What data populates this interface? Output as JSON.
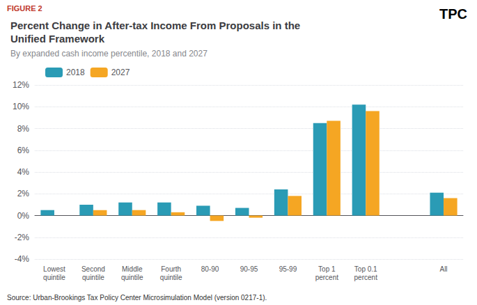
{
  "chart_data": {
    "type": "bar",
    "title": "Percent Change in After-tax Income From Proposals in the\nUnified Framework",
    "subtitle": "By expanded cash income percentile, 2018 and 2027",
    "annotations": [
      "FIGURE 2",
      "TPC",
      "Source: Urban-Brookings Tax Policy Center Microsimulation Model (version 0217-1)."
    ],
    "categories": [
      "Lowest\nquintile",
      "Second\nquintile",
      "Middle\nquintile",
      "Fourth\nquintile",
      "80-90",
      "90-95",
      "95-99",
      "Top 1\npercent",
      "Top 0.1\npercent",
      null,
      "All"
    ],
    "series": [
      {
        "name": "2018",
        "color": "#2a9bb5",
        "values": [
          0.5,
          1.0,
          1.2,
          1.2,
          0.9,
          0.7,
          2.4,
          8.5,
          10.2,
          null,
          2.1
        ]
      },
      {
        "name": "2027",
        "color": "#f5a623",
        "values": [
          0.0,
          0.5,
          0.5,
          0.3,
          -0.5,
          -0.2,
          1.8,
          8.7,
          9.6,
          null,
          1.6
        ]
      }
    ],
    "ylim": [
      -4,
      12
    ],
    "yticks": [
      {
        "value": -4,
        "label": "-4%"
      },
      {
        "value": -2,
        "label": "-2%"
      },
      {
        "value": 0,
        "label": "0%"
      },
      {
        "value": 2,
        "label": "2%"
      },
      {
        "value": 4,
        "label": "4%"
      },
      {
        "value": 6,
        "label": "6%"
      },
      {
        "value": 8,
        "label": "8%"
      },
      {
        "value": 10,
        "label": "10%"
      },
      {
        "value": 12,
        "label": "12%"
      }
    ],
    "grid": true,
    "legend": "upper left"
  }
}
